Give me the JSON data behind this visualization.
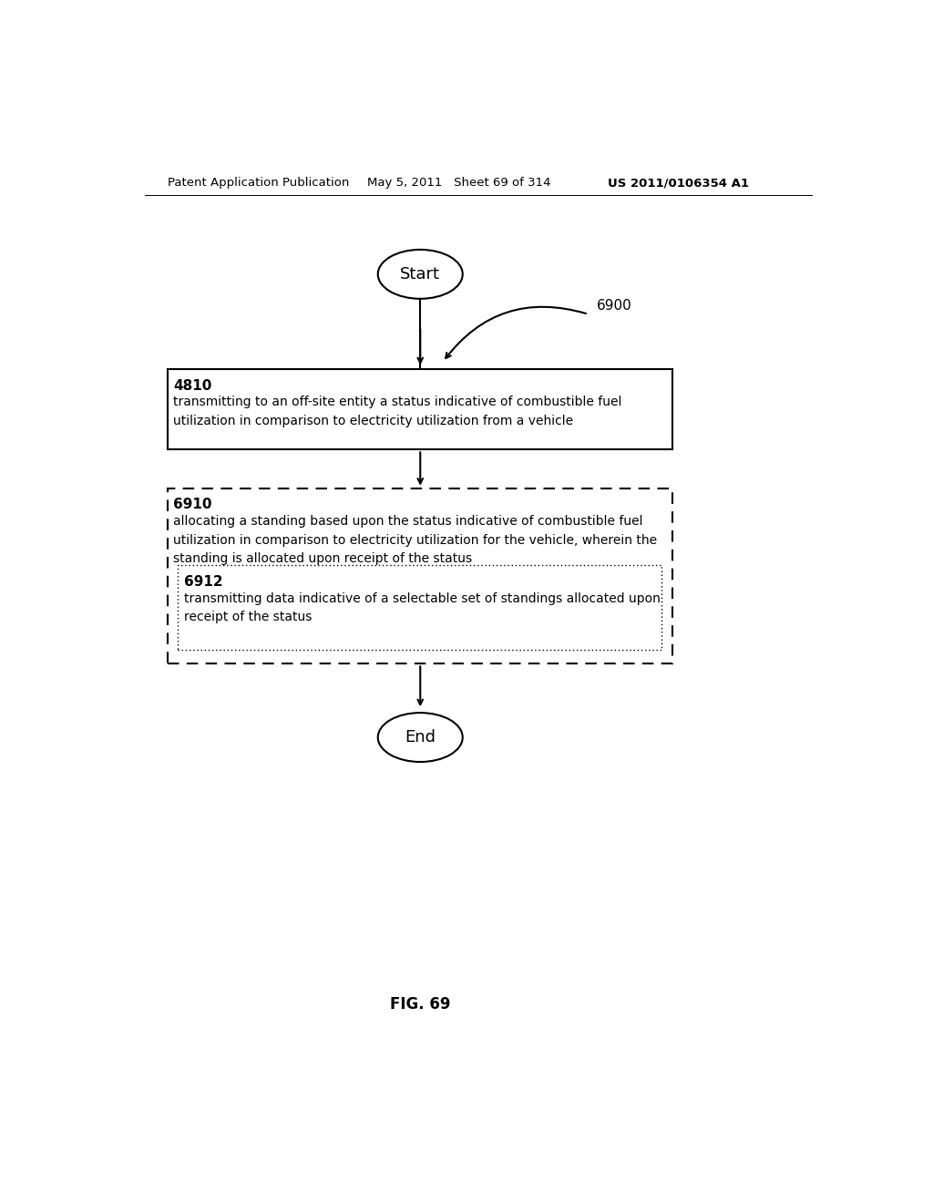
{
  "bg_color": "#ffffff",
  "header_left": "Patent Application Publication",
  "header_mid": "May 5, 2011   Sheet 69 of 314",
  "header_right": "US 2011/0106354 A1",
  "fig_label": "FIG. 69",
  "diagram_label": "6900",
  "start_label": "Start",
  "end_label": "End",
  "box4810_id": "4810",
  "box4810_text": "transmitting to an off-site entity a status indicative of combustible fuel\nutilization in comparison to electricity utilization from a vehicle",
  "box6910_id": "6910",
  "box6910_text": "allocating a standing based upon the status indicative of combustible fuel\nutilization in comparison to electricity utilization for the vehicle, wherein the\nstanding is allocated upon receipt of the status",
  "box6912_id": "6912",
  "box6912_text": "transmitting data indicative of a selectable set of standings allocated upon\nreceipt of the status",
  "text_color": "#000000",
  "box_edge_color": "#000000",
  "line_color": "#000000"
}
